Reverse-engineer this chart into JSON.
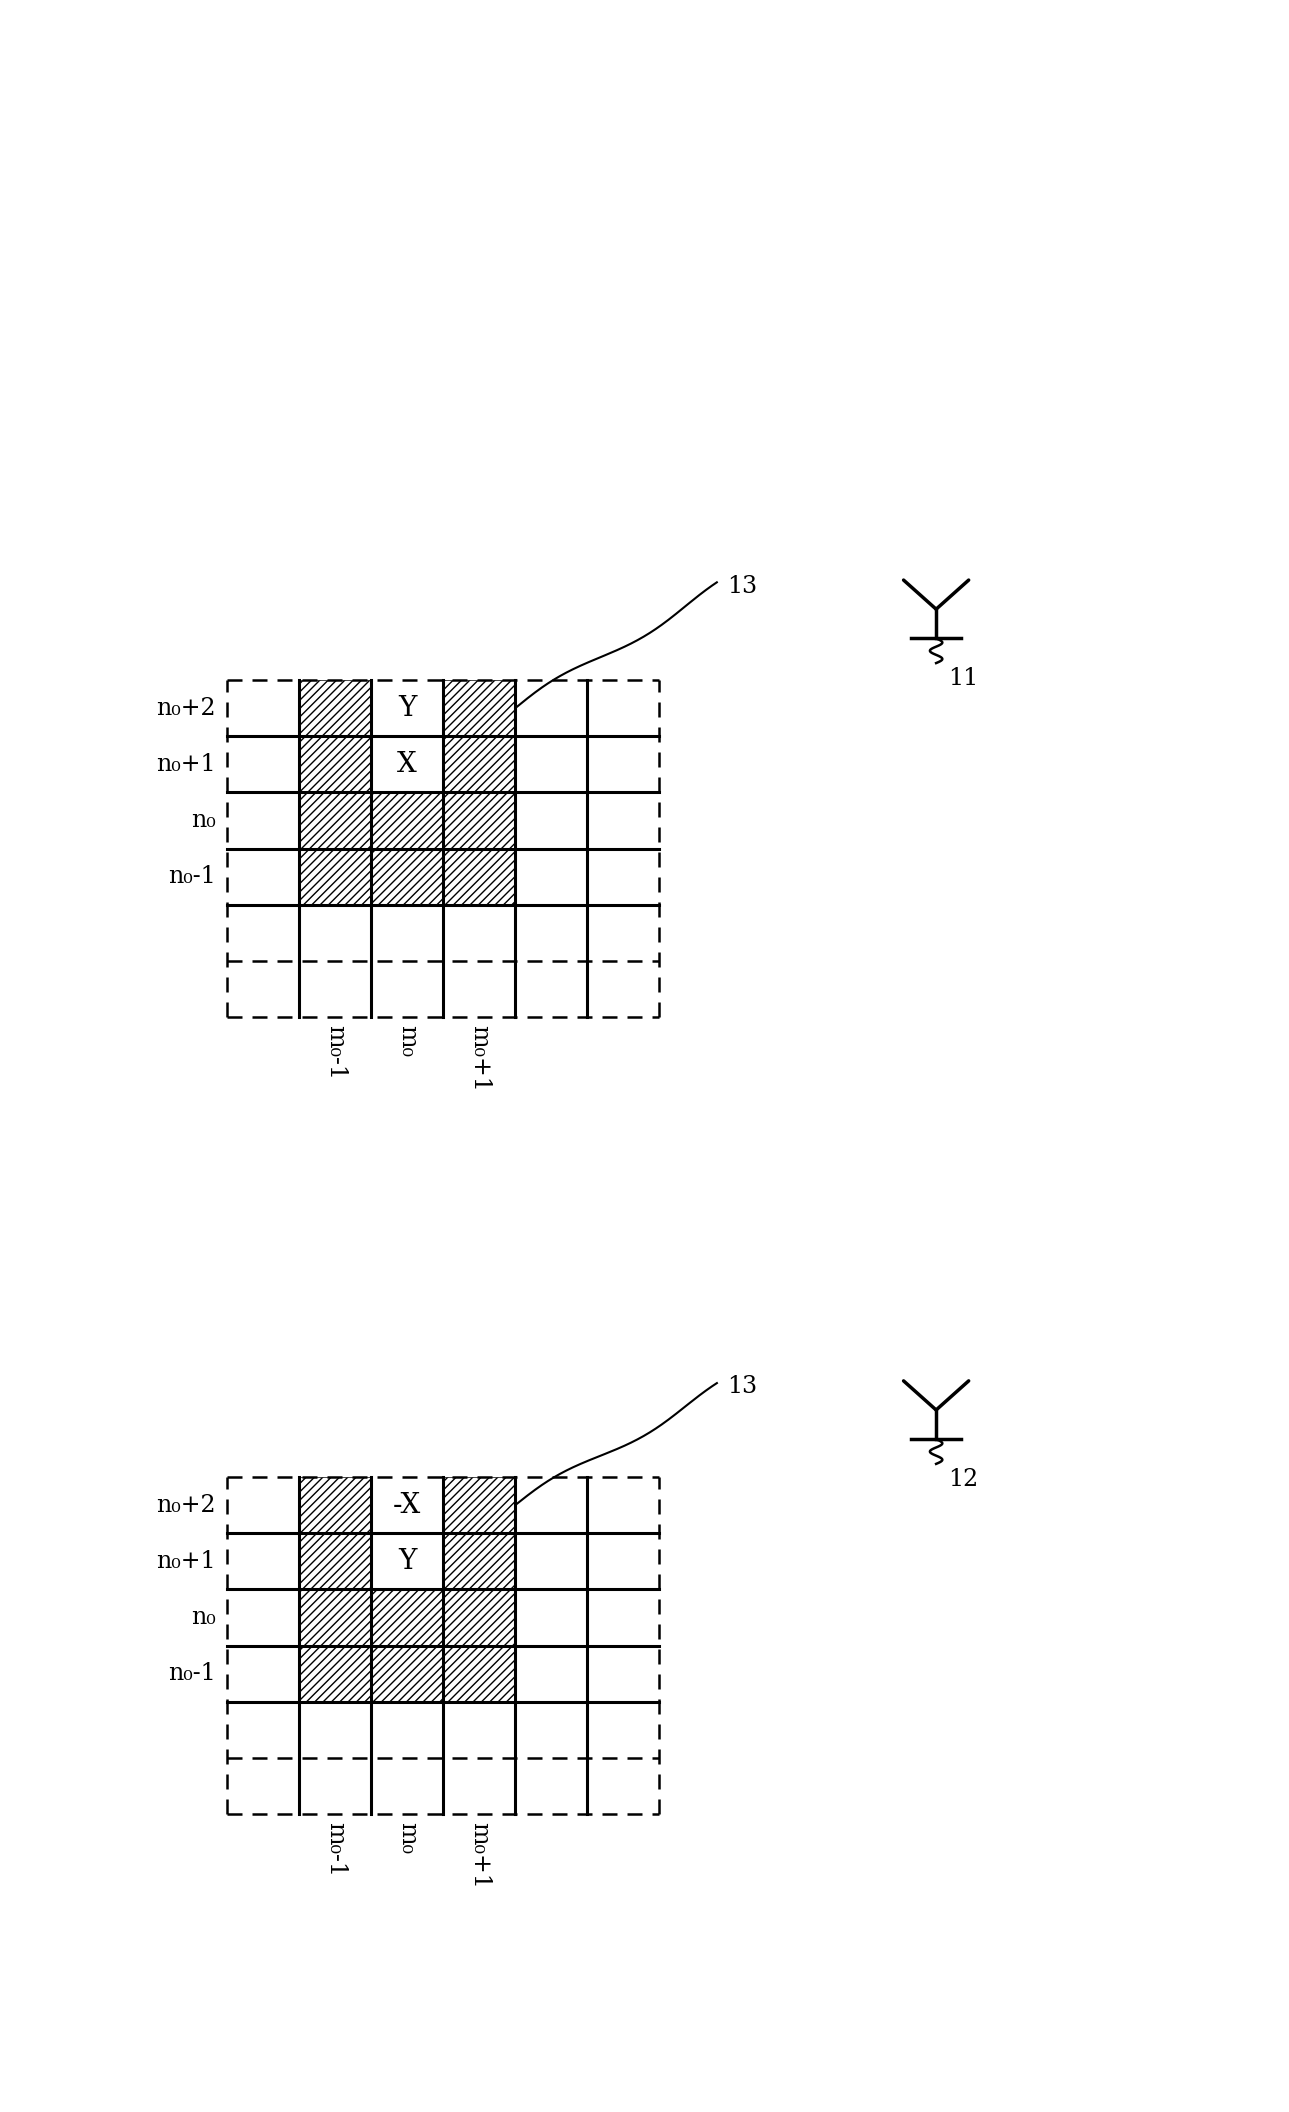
{
  "fig_width": 12.89,
  "fig_height": 21.12,
  "bg_color": "#ffffff",
  "diagrams": [
    {
      "row_labels": [
        "n₀+2",
        "n₀+1",
        "n₀",
        "n₀-1"
      ],
      "col_labels": [
        "m₀-1",
        "m₀",
        "m₀+1"
      ],
      "center_label_top": "Y",
      "center_label_bot": "X",
      "antenna_label": "11"
    },
    {
      "row_labels": [
        "n₀+2",
        "n₀+1",
        "n₀",
        "n₀-1"
      ],
      "col_labels": [
        "m₀-1",
        "m₀",
        "m₀+1"
      ],
      "center_label_top": "-X",
      "center_label_bot": "Y",
      "antenna_label": "12"
    }
  ]
}
